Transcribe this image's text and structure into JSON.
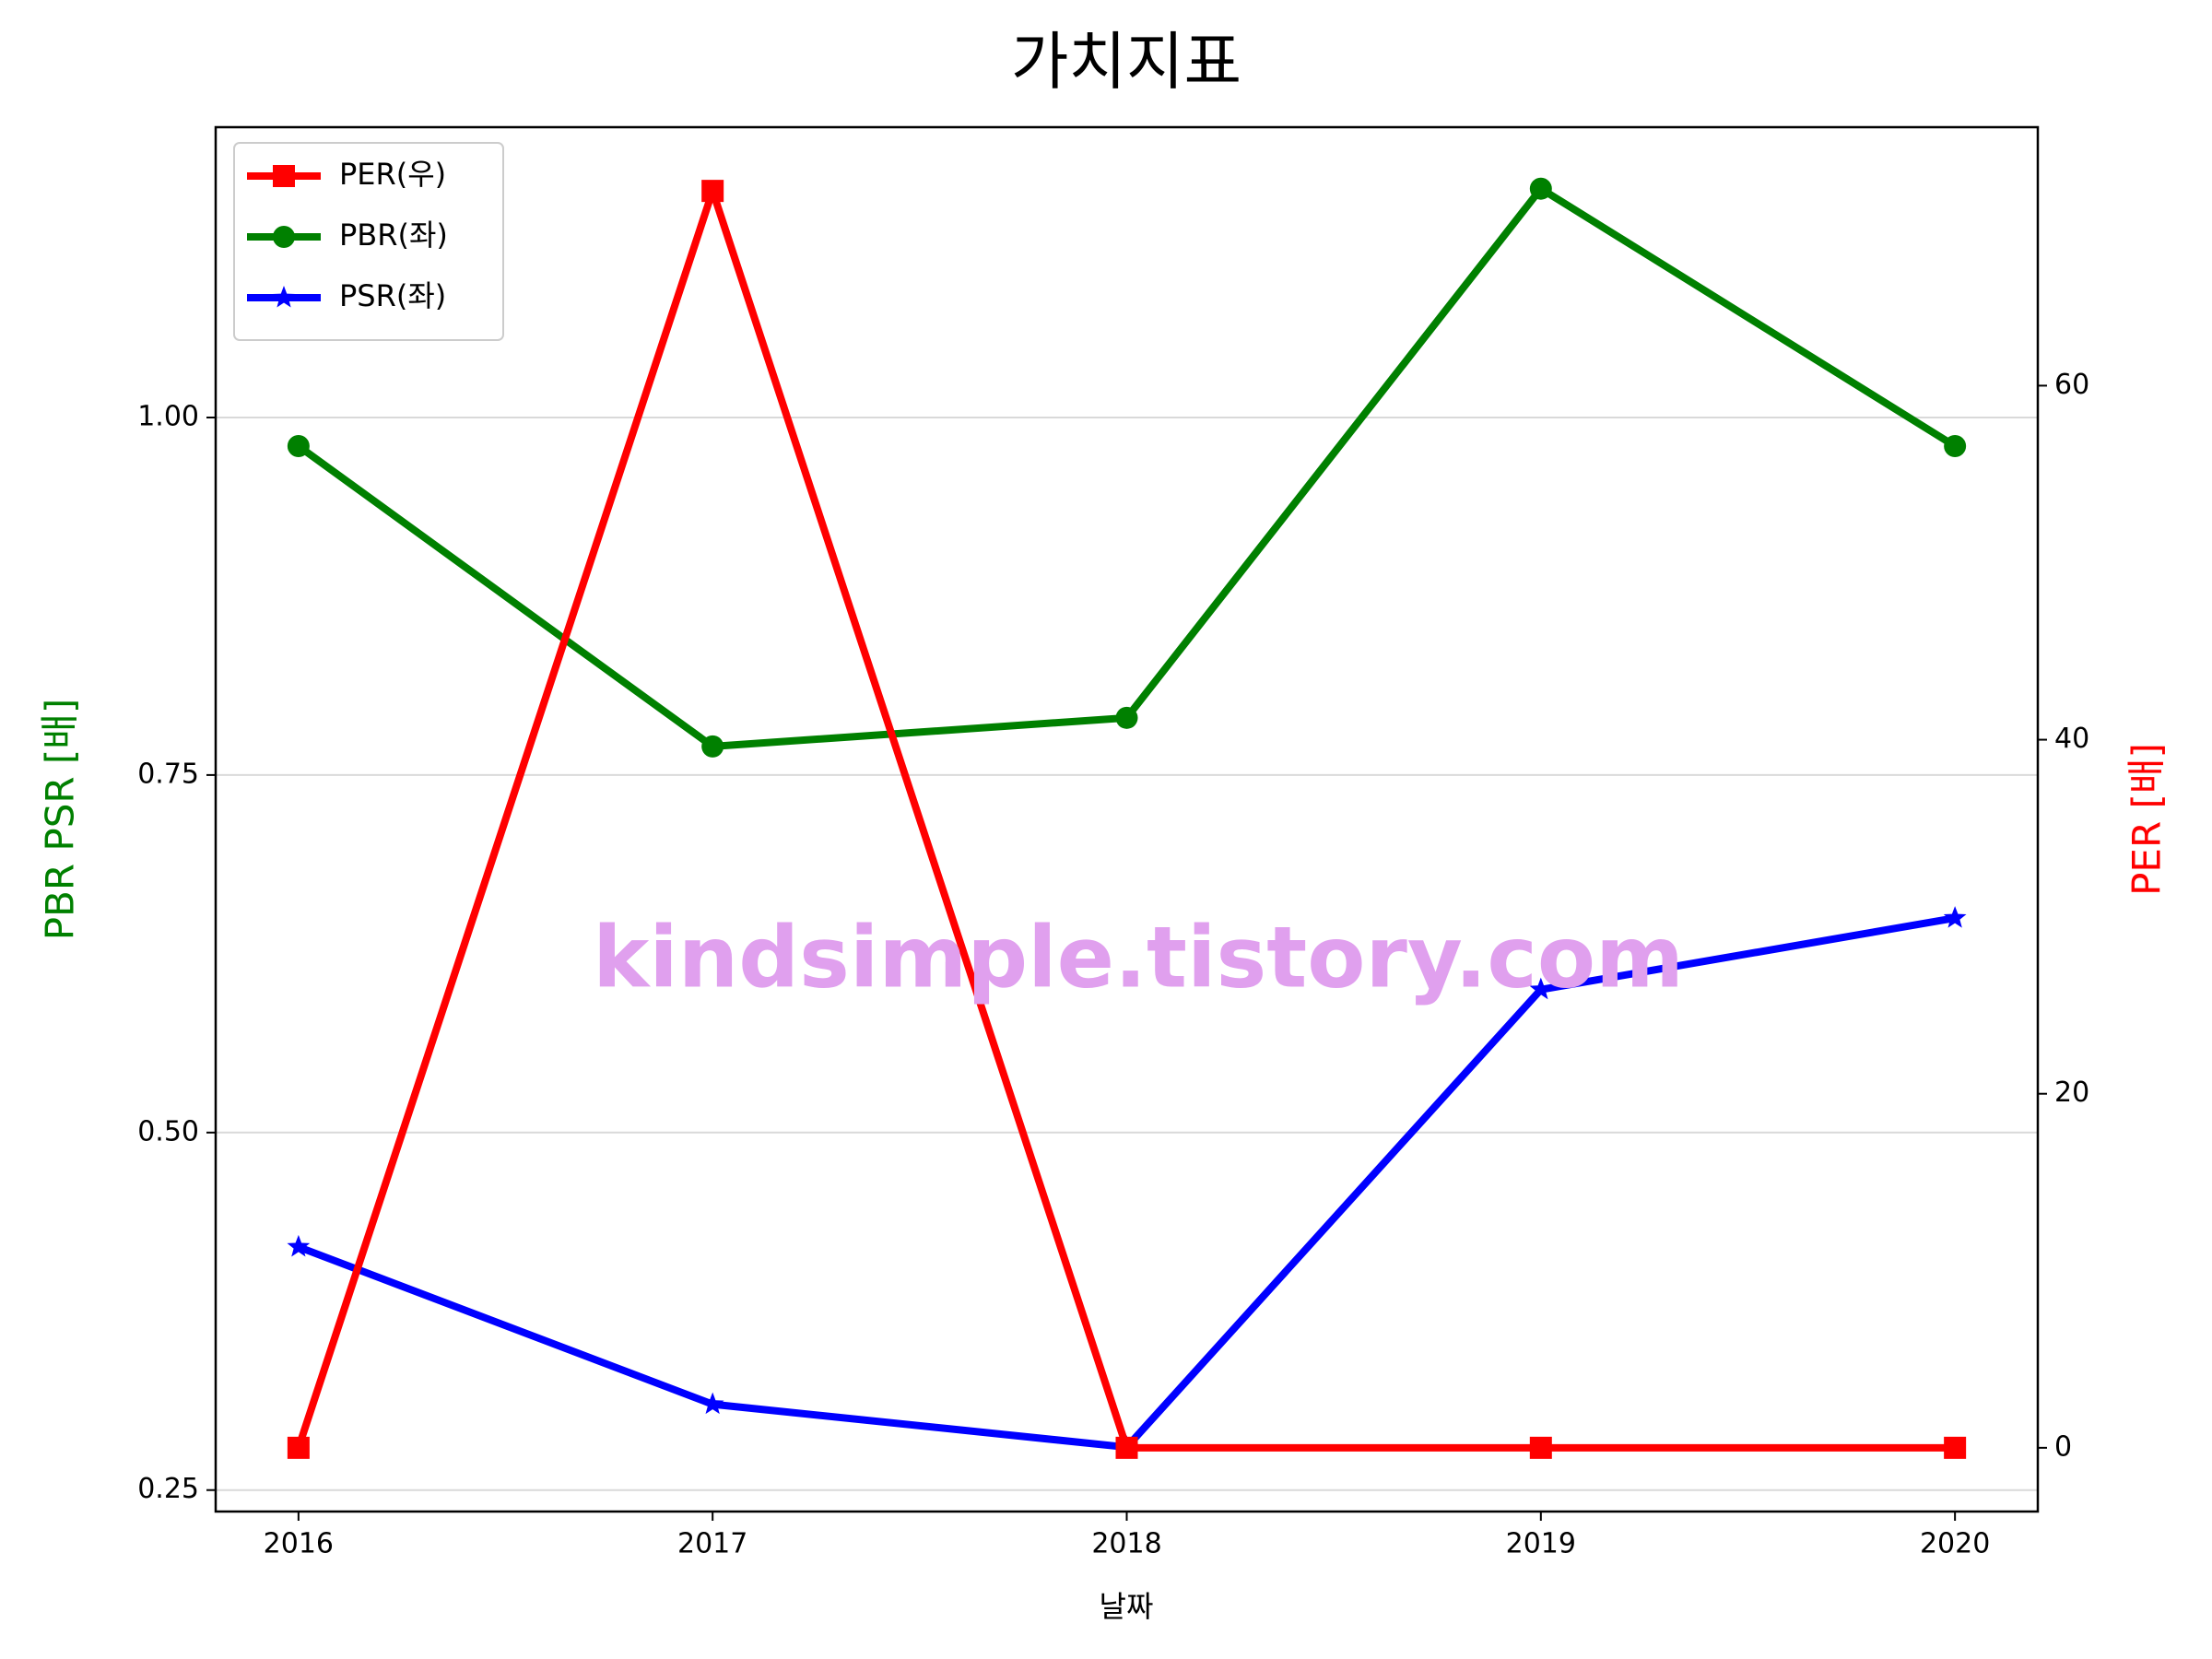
{
  "chart_data": {
    "type": "line",
    "title": "가치지표",
    "xlabel": "날짜",
    "ylabel": "PBR PSR [배]",
    "y2label": "PER [배]",
    "ylabel_color": "#008000",
    "y2label_color": "#ff0000",
    "watermark": "kindsimple.tistory.com",
    "x": [
      2016,
      2017,
      2018,
      2019,
      2020
    ],
    "xlim": [
      2015.8,
      2020.2
    ],
    "xticks": [
      2016,
      2017,
      2018,
      2019,
      2020
    ],
    "ylim": [
      0.235,
      1.203
    ],
    "yticks": [
      {
        "value": 0.25,
        "label": "0.25"
      },
      {
        "value": 0.5,
        "label": "0.50"
      },
      {
        "value": 0.75,
        "label": "0.75"
      },
      {
        "value": 1.0,
        "label": "1.00"
      }
    ],
    "y2lim": [
      -3.6,
      74.6
    ],
    "y2ticks": [
      0,
      20,
      40,
      60
    ],
    "grid": true,
    "legend": "upper-left",
    "series": [
      {
        "name": "PER(우)",
        "color": "#ff0000",
        "marker": "square",
        "axis": "y2",
        "values": [
          0,
          71,
          0,
          0,
          0
        ]
      },
      {
        "name": "PBR(좌)",
        "color": "#008000",
        "marker": "circle",
        "values": [
          0.98,
          0.77,
          0.79,
          1.16,
          0.98
        ]
      },
      {
        "name": "PSR(좌)",
        "color": "#0000ff",
        "marker": "star",
        "values": [
          0.42,
          0.31,
          0.28,
          0.6,
          0.65
        ]
      }
    ]
  }
}
